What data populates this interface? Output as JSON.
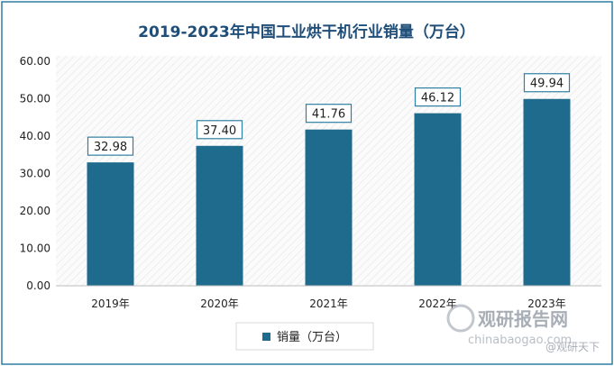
{
  "chart_data": {
    "type": "bar",
    "title": "2019-2023年中国工业烘干机行业销量（万台）",
    "categories": [
      "2019年",
      "2020年",
      "2021年",
      "2022年",
      "2023年"
    ],
    "series": [
      {
        "name": "销量（万台）",
        "values": [
          32.98,
          37.4,
          41.76,
          46.12,
          49.94
        ]
      }
    ],
    "data_labels": [
      "32.98",
      "37.40",
      "41.76",
      "46.12",
      "49.94"
    ],
    "y_ticks": [
      "0.00",
      "10.00",
      "20.00",
      "30.00",
      "40.00",
      "50.00",
      "60.00"
    ],
    "ylim": [
      0,
      60
    ],
    "xlabel": "",
    "ylabel": "",
    "grid": false,
    "legend_position": "bottom",
    "colors": {
      "bar": "#1f6b8e",
      "title": "#1f4e79",
      "frame": "#2f7fa3",
      "label_border": "#2f7fa3",
      "axis_text": "#222222"
    }
  },
  "watermark": {
    "brand": "观研报告网",
    "url": "chinabaogao.com",
    "source": "@观研天下"
  }
}
